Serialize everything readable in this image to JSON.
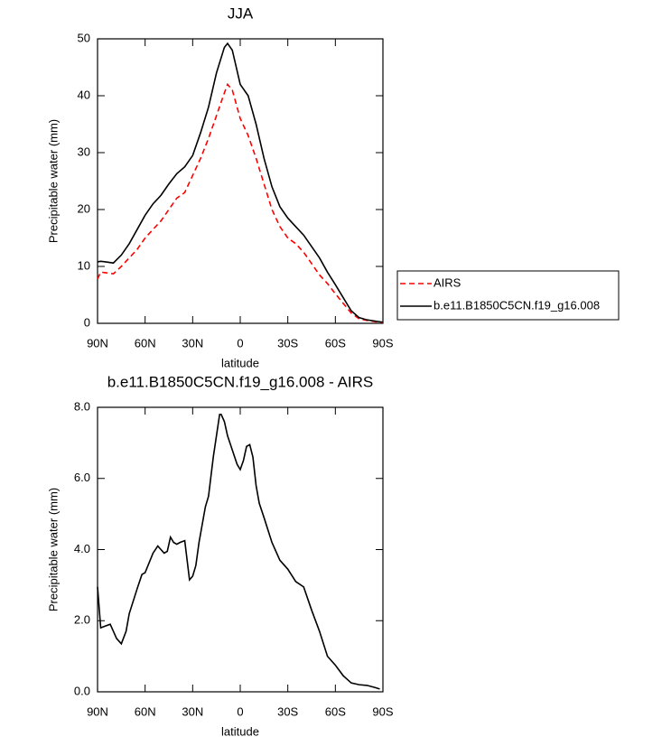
{
  "chart_data": [
    {
      "type": "line",
      "title": "JJA",
      "xlabel": "latitude",
      "ylabel": "Precipitable water (mm)",
      "x": [
        90,
        88,
        85,
        80,
        75,
        70,
        65,
        60,
        55,
        50,
        45,
        40,
        35,
        30,
        25,
        20,
        15,
        10,
        8,
        5,
        0,
        -5,
        -10,
        -15,
        -20,
        -25,
        -30,
        -35,
        -40,
        -45,
        -50,
        -55,
        -60,
        -65,
        -70,
        -75,
        -80,
        -85,
        -90
      ],
      "series": [
        {
          "name": "AIRS",
          "color": "#ff0000",
          "dash": true,
          "values": [
            7.8,
            9,
            8.9,
            8.7,
            10,
            11.5,
            13,
            15,
            16.5,
            18,
            20,
            22,
            23,
            26,
            29,
            32.5,
            36.5,
            40.5,
            42,
            41,
            36,
            33,
            29,
            24.5,
            20,
            17,
            15,
            14,
            12.5,
            10.5,
            8.5,
            7,
            5.2,
            3.5,
            1.8,
            0.8,
            0.5,
            0.3,
            0.1
          ]
        },
        {
          "name": "b.e11.B1850C5CN.f19_g16.008",
          "color": "#000000",
          "dash": false,
          "values": [
            10.8,
            10.9,
            10.8,
            10.6,
            12,
            14,
            16.5,
            19,
            21,
            22.5,
            24.5,
            26.3,
            27.5,
            29.5,
            33.5,
            38,
            44,
            48.5,
            49.2,
            48,
            42,
            40,
            35,
            29,
            24,
            20.5,
            18.5,
            17,
            15.5,
            13.5,
            11.5,
            9,
            6.8,
            4.5,
            2.2,
            1.0,
            0.6,
            0.4,
            0.2
          ]
        }
      ],
      "xlim": [
        90,
        -90
      ],
      "xticks": [
        {
          "value": 90,
          "label": "90N"
        },
        {
          "value": 60,
          "label": "60N"
        },
        {
          "value": 30,
          "label": "30N"
        },
        0,
        {
          "value": -30,
          "label": "30S"
        },
        {
          "value": -60,
          "label": "60S"
        },
        {
          "value": -90,
          "label": "90S"
        }
      ],
      "ylim": [
        0,
        50
      ],
      "yticks": [
        0,
        10,
        20,
        30,
        40,
        50
      ],
      "legend": "right"
    },
    {
      "type": "line",
      "title": "b.e11.B1850C5CN.f19_g16.008 - AIRS",
      "xlabel": "latitude",
      "ylabel": "Precipitable water (mm)",
      "x": [
        90,
        88,
        85,
        82,
        80,
        78,
        75,
        72,
        70,
        65,
        62,
        60,
        55,
        52,
        50,
        48,
        46,
        44,
        42,
        40,
        38,
        35,
        32,
        30,
        28,
        26,
        22,
        20,
        17,
        15,
        13,
        12,
        10,
        8,
        5,
        2,
        0,
        -2,
        -4,
        -6,
        -8,
        -10,
        -12,
        -15,
        -20,
        -25,
        -30,
        -35,
        -40,
        -45,
        -50,
        -55,
        -60,
        -65,
        -70,
        -75,
        -80,
        -85,
        -88
      ],
      "values": [
        2.95,
        1.8,
        1.85,
        1.9,
        1.7,
        1.5,
        1.35,
        1.7,
        2.2,
        2.9,
        3.3,
        3.35,
        3.9,
        4.1,
        4.0,
        3.9,
        3.95,
        4.35,
        4.2,
        4.15,
        4.2,
        4.25,
        3.15,
        3.25,
        3.55,
        4.2,
        5.2,
        5.5,
        6.6,
        7.2,
        7.8,
        7.8,
        7.6,
        7.2,
        6.8,
        6.4,
        6.25,
        6.5,
        6.9,
        6.95,
        6.6,
        5.8,
        5.3,
        4.9,
        4.2,
        3.7,
        3.45,
        3.1,
        2.95,
        2.3,
        1.7,
        1.0,
        0.75,
        0.45,
        0.25,
        0.2,
        0.18,
        0.12,
        0.08
      ],
      "color": "#000000",
      "xlim": [
        90,
        -90
      ],
      "xticks": [
        {
          "value": 90,
          "label": "90N"
        },
        {
          "value": 60,
          "label": "60N"
        },
        {
          "value": 30,
          "label": "30N"
        },
        0,
        {
          "value": -30,
          "label": "30S"
        },
        {
          "value": -60,
          "label": "60S"
        },
        {
          "value": -90,
          "label": "90S"
        }
      ],
      "ylim": [
        0,
        8
      ],
      "yticks": [
        {
          "value": 0,
          "label": "0.0"
        },
        {
          "value": 2,
          "label": "2.0"
        },
        {
          "value": 4,
          "label": "4.0"
        },
        {
          "value": 6,
          "label": "6.0"
        },
        {
          "value": 8,
          "label": "8.0"
        }
      ]
    }
  ]
}
